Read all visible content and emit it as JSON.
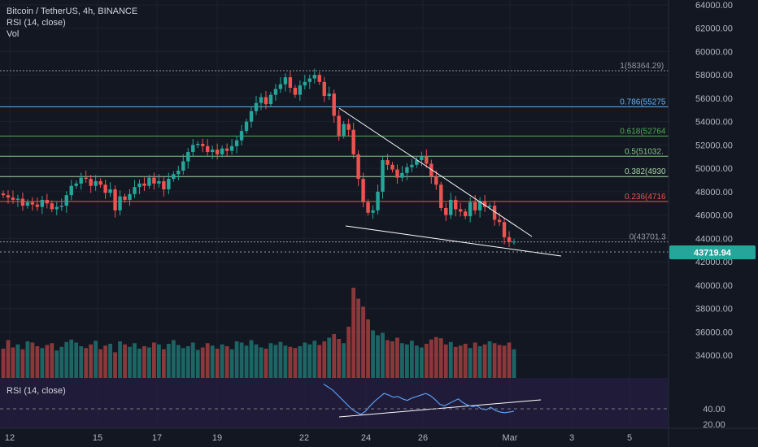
{
  "header": {
    "symbol_line": "Bitcoin / TetherUS, 4h, BINANCE",
    "rsi_line": "RSI (14, close)",
    "vol_line": "Vol"
  },
  "rsi_pane": {
    "label": "RSI (14, close)",
    "ticks": [
      "40.00",
      "20.00"
    ]
  },
  "price_axis": {
    "ticks": [
      "64000.00",
      "62000.00",
      "60000.00",
      "58000.00",
      "56000.00",
      "54000.00",
      "52000.00",
      "50000.00",
      "48000.00",
      "46000.00",
      "44000.00",
      "42000.00",
      "40000.00",
      "38000.00",
      "36000.00",
      "34000.00"
    ],
    "current_price": "43719.94",
    "current_price_color": "#26a69a"
  },
  "time_axis": {
    "ticks": [
      "12",
      "15",
      "17",
      "19",
      "22",
      "24",
      "26",
      "Mar",
      "3",
      "5"
    ]
  },
  "colors": {
    "up": "#26a69a",
    "down": "#ef5350",
    "background": "#131722",
    "rsi_band": "#2a1f4a",
    "rsi_line": "#5b9cf6"
  },
  "chart_data": {
    "type": "candlestick",
    "title": "Bitcoin / TetherUS, 4h, BINANCE",
    "x_ticks": [
      "12",
      "15",
      "17",
      "19",
      "22",
      "24",
      "26",
      "Mar",
      "3",
      "5"
    ],
    "ylim": [
      33000,
      64800
    ],
    "fib_levels": [
      {
        "label": "1(58364.29)",
        "value": 58364,
        "color": "#9598a1"
      },
      {
        "label": "0.786(55275",
        "value": 55275,
        "color": "#64b5f6"
      },
      {
        "label": "0.618(52764",
        "value": 52764,
        "color": "#4caf50"
      },
      {
        "label": "0.5(51032.",
        "value": 51032,
        "color": "#81c784"
      },
      {
        "label": "0.382(4930",
        "value": 49300,
        "color": "#a5d6a7"
      },
      {
        "label": "0.236(4716",
        "value": 47160,
        "color": "#ef5350"
      },
      {
        "label": "0(43701.3",
        "value": 43701,
        "color": "#9598a1"
      }
    ],
    "close_path": [
      47700,
      47500,
      47300,
      47400,
      46800,
      47100,
      46900,
      46700,
      47300,
      47000,
      46500,
      46700,
      46800,
      47700,
      48500,
      48700,
      49200,
      49100,
      48500,
      48900,
      48600,
      47900,
      48200,
      46400,
      47600,
      47300,
      47800,
      48400,
      48700,
      48500,
      49200,
      48700,
      48900,
      48200,
      49100,
      49500,
      49800,
      50600,
      51400,
      52000,
      52100,
      51900,
      51400,
      51600,
      51200,
      51700,
      51500,
      51900,
      52400,
      53200,
      54000,
      54900,
      55600,
      56100,
      55500,
      56300,
      56800,
      57200,
      57800,
      56900,
      56300,
      57100,
      57400,
      57700,
      58000,
      57400,
      56200,
      56400,
      54500,
      52800,
      53800,
      53300,
      51200,
      49100,
      47100,
      46200,
      46400,
      48000,
      50700,
      50300,
      49900,
      49200,
      49600,
      50100,
      50300,
      50700,
      51000,
      50400,
      49300,
      48600,
      46600,
      46000,
      47300,
      46500,
      46300,
      45900,
      47100,
      46400,
      47200,
      46700,
      46800,
      45600,
      45400,
      44100,
      43700,
      43720
    ],
    "volume_k": [
      48,
      62,
      50,
      55,
      47,
      60,
      58,
      52,
      49,
      54,
      57,
      45,
      51,
      59,
      63,
      58,
      52,
      49,
      55,
      61,
      47,
      53,
      56,
      42,
      60,
      55,
      51,
      57,
      48,
      52,
      50,
      58,
      55,
      47,
      56,
      62,
      54,
      49,
      52,
      58,
      46,
      50,
      57,
      53,
      48,
      55,
      52,
      47,
      60,
      58,
      53,
      62,
      55,
      50,
      48,
      57,
      54,
      59,
      53,
      51,
      49,
      52,
      58,
      55,
      61,
      54,
      60,
      66,
      72,
      64,
      57,
      84,
      148,
      130,
      117,
      96,
      78,
      70,
      74,
      62,
      60,
      66,
      57,
      55,
      61,
      53,
      50,
      56,
      63,
      67,
      65,
      55,
      59,
      51,
      53,
      56,
      49,
      58,
      52,
      55,
      60,
      57,
      54,
      53,
      58,
      47
    ],
    "rsi_path": [
      72,
      68,
      64,
      58,
      52,
      46,
      40,
      36,
      33,
      37,
      44,
      50,
      55,
      60,
      58,
      55,
      56,
      53,
      51,
      54,
      56,
      58,
      60,
      57,
      52,
      46,
      44,
      47,
      50,
      53,
      48,
      45,
      43,
      44,
      40,
      39,
      42,
      38,
      36,
      35,
      36,
      37
    ],
    "volume_ylim": [
      0,
      160
    ],
    "rsi_ylim": [
      15,
      80
    ]
  }
}
